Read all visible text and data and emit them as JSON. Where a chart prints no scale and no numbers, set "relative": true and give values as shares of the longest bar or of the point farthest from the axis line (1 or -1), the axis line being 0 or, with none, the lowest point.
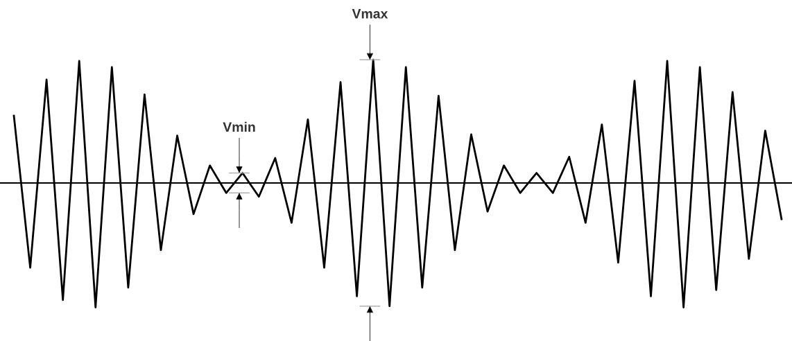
{
  "chart_data": {
    "type": "line",
    "relative": true,
    "categories": [
      null,
      null,
      null,
      null,
      null,
      null,
      null,
      null,
      null,
      null,
      null,
      null,
      null,
      null,
      null,
      null,
      null,
      null,
      null,
      null,
      null,
      null,
      null,
      null,
      null,
      null,
      null,
      null,
      null,
      null,
      null,
      null,
      null,
      null,
      null,
      null,
      null,
      null,
      null,
      null,
      null,
      null,
      null,
      null,
      null,
      null,
      null,
      null
    ],
    "series": [
      {
        "color": "#000000",
        "values": [
          0.54,
          -0.68,
          0.83,
          -0.94,
          0.98,
          -1,
          0.93,
          -0.84,
          0.71,
          -0.54,
          0.38,
          -0.25,
          0.14,
          -0.08,
          0.08,
          -0.11,
          0.2,
          -0.32,
          0.51,
          -0.68,
          0.81,
          -0.91,
          0.99,
          -0.99,
          0.93,
          -0.84,
          0.7,
          -0.54,
          0.39,
          -0.23,
          0.14,
          -0.08,
          0.08,
          -0.08,
          0.21,
          -0.32,
          0.47,
          -0.64,
          0.82,
          -0.91,
          0.98,
          -1,
          0.93,
          -0.86,
          0.73,
          -0.61,
          0.42,
          -0.29
        ]
      }
    ],
    "annotations": [
      {
        "text": "Vmin",
        "y": 0.08
      },
      {
        "text": "Vmax",
        "y": 0.99
      }
    ],
    "marker": "none",
    "line_style": "solid"
  }
}
